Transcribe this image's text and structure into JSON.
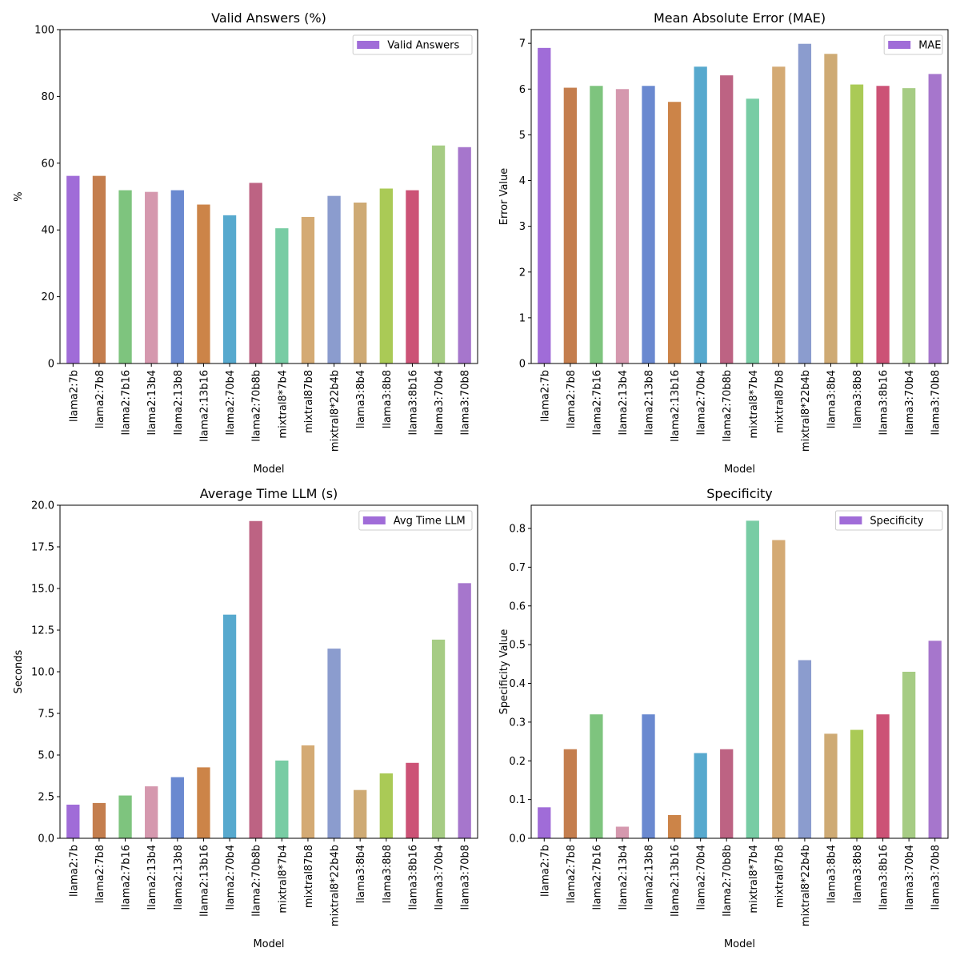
{
  "chart_data": [
    {
      "type": "bar",
      "title": "Valid Answers (%)",
      "xlabel": "Model",
      "ylabel": "%",
      "ylim": [
        0,
        100
      ],
      "yticks": [
        "0",
        "20",
        "40",
        "60",
        "80",
        "100"
      ],
      "legend": "Valid Answers",
      "legend_position": "top-right",
      "categories": [
        "llama2:7b",
        "llama2:7b8",
        "llama2:7b16",
        "llama2:13b4",
        "llama2:13b8",
        "llama2:13b16",
        "llama2:70b4",
        "llama2:70b8b",
        "mixtral8*7b4",
        "mixtral87b8",
        "mixtral8*22b4b",
        "llama3:8b4",
        "llama3:8b8",
        "llama3:8b16",
        "llama3:70b4",
        "llama3:70b8"
      ],
      "values": [
        56.2,
        56.2,
        51.9,
        51.4,
        51.9,
        47.6,
        44.4,
        54.1,
        40.5,
        43.9,
        50.2,
        48.2,
        52.4,
        51.9,
        65.3,
        64.8
      ]
    },
    {
      "type": "bar",
      "title": "Mean Absolute Error (MAE)",
      "xlabel": "Model",
      "ylabel": "Error Value",
      "ylim": [
        0,
        7.3
      ],
      "yticks": [
        "0",
        "1",
        "2",
        "3",
        "4",
        "5",
        "6",
        "7"
      ],
      "legend": "MAE",
      "legend_position": "top-right",
      "categories": [
        "llama2:7b",
        "llama2:7b8",
        "llama2:7b16",
        "llama2:13b4",
        "llama2:13b8",
        "llama2:13b16",
        "llama2:70b4",
        "llama2:70b8b",
        "mixtral8*7b4",
        "mixtral87b8",
        "mixtral8*22b4b",
        "llama3:8b4",
        "llama3:8b8",
        "llama3:8b16",
        "llama3:70b4",
        "llama3:70b8"
      ],
      "values": [
        6.9,
        6.03,
        6.07,
        6.0,
        6.07,
        5.72,
        6.49,
        6.3,
        5.79,
        6.49,
        6.99,
        6.77,
        6.1,
        6.07,
        6.02,
        6.33
      ]
    },
    {
      "type": "bar",
      "title": "Average Time LLM (s)",
      "xlabel": "Model",
      "ylabel": "Seconds",
      "ylim": [
        0,
        20
      ],
      "yticks": [
        "0.0",
        "2.5",
        "5.0",
        "7.5",
        "10.0",
        "12.5",
        "15.0",
        "17.5",
        "20.0"
      ],
      "legend": "Avg Time LLM",
      "legend_position": "top-right",
      "categories": [
        "llama2:7b",
        "llama2:7b8",
        "llama2:7b16",
        "llama2:13b4",
        "llama2:13b8",
        "llama2:13b16",
        "llama2:70b4",
        "llama2:70b8b",
        "mixtral8*7b4",
        "mixtral87b8",
        "mixtral8*22b4b",
        "llama3:8b4",
        "llama3:8b8",
        "llama3:8b16",
        "llama3:70b4",
        "llama3:70b8"
      ],
      "values": [
        2.02,
        2.12,
        2.57,
        3.12,
        3.67,
        4.26,
        13.43,
        19.05,
        4.67,
        5.58,
        11.39,
        2.9,
        3.9,
        4.53,
        11.93,
        15.32
      ]
    },
    {
      "type": "bar",
      "title": "Specificity",
      "xlabel": "Model",
      "ylabel": "Specificity Value",
      "ylim": [
        0,
        0.86
      ],
      "yticks": [
        "0.0",
        "0.1",
        "0.2",
        "0.3",
        "0.4",
        "0.5",
        "0.6",
        "0.7",
        "0.8"
      ],
      "legend": "Specificity",
      "legend_position": "top-right",
      "categories": [
        "llama2:7b",
        "llama2:7b8",
        "llama2:7b16",
        "llama2:13b4",
        "llama2:13b8",
        "llama2:13b16",
        "llama2:70b4",
        "llama2:70b8b",
        "mixtral8*7b4",
        "mixtral87b8",
        "mixtral8*22b4b",
        "llama3:8b4",
        "llama3:8b8",
        "llama3:8b16",
        "llama3:70b4",
        "llama3:70b8"
      ],
      "values": [
        0.08,
        0.23,
        0.32,
        0.03,
        0.32,
        0.06,
        0.22,
        0.23,
        0.82,
        0.77,
        0.46,
        0.27,
        0.28,
        0.32,
        0.43,
        0.51
      ]
    }
  ],
  "colors": {
    "legend_swatch": "#a06cd8",
    "bars": [
      "#a06cd8",
      "#c47e4e",
      "#7ec47e",
      "#d598ae",
      "#6a89d0",
      "#cc8448",
      "#57a9ce",
      "#bd6383",
      "#78cca4",
      "#d4aa74",
      "#8b9cce",
      "#ceaa74",
      "#aaca56",
      "#cc5276",
      "#a6cc84",
      "#a676cc"
    ]
  }
}
